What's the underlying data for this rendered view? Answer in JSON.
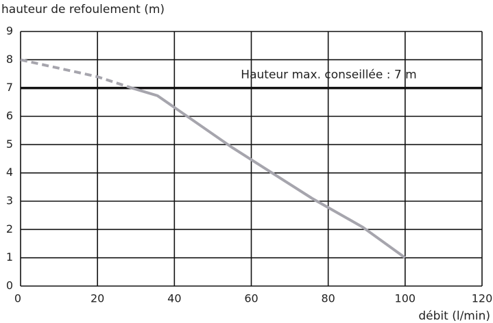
{
  "chart_data": {
    "type": "line",
    "y_label": "hauteur de refoulement (m)",
    "x_label": "débit (l/min)",
    "xlim": [
      0,
      120
    ],
    "xticks": [
      0,
      20,
      40,
      60,
      80,
      100,
      120
    ],
    "ylim": [
      0,
      9
    ],
    "yticks": [
      0,
      1,
      2,
      3,
      4,
      5,
      6,
      7,
      8,
      9
    ],
    "grid": true,
    "series": [
      {
        "color": "#a6a5ad",
        "style": "dashed",
        "x": [
          0,
          20,
          29
        ],
        "values": [
          8,
          7.4,
          7.0
        ]
      },
      {
        "color": "#a6a5ad",
        "style": "solid",
        "x": [
          29,
          35.6,
          55,
          75.8,
          89,
          100
        ],
        "values": [
          7.0,
          6.73,
          4.9,
          3.1,
          2.08,
          1.0
        ]
      }
    ],
    "reference_lines": [
      {
        "value": 7,
        "label": "Hauteur max. conseillée : 7 m",
        "color": "#111"
      }
    ]
  }
}
